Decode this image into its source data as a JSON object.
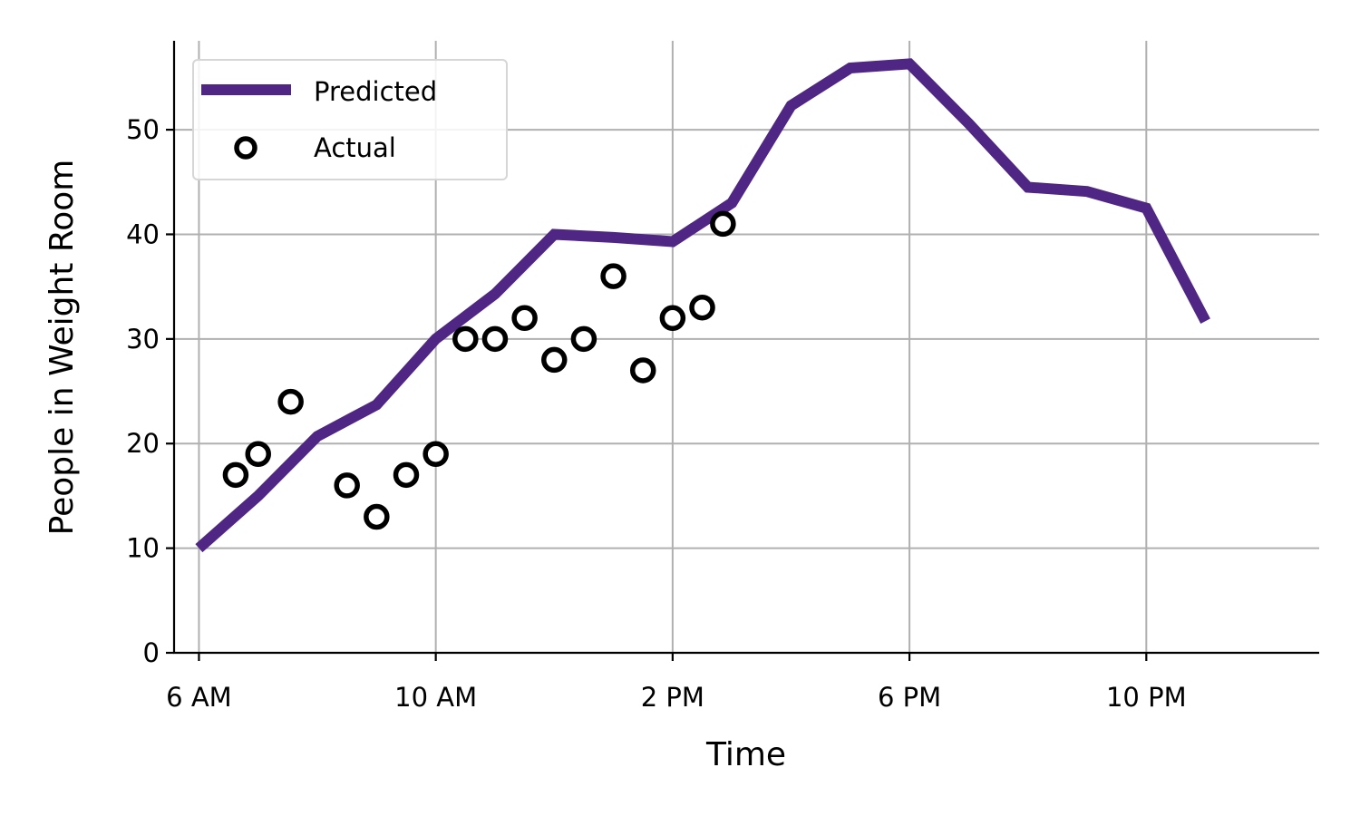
{
  "chart_data": {
    "type": "line",
    "xlabel": "Time",
    "ylabel": "People in Weight Room",
    "x_unit": "hour of day",
    "xlim": [
      5.58,
      24.92
    ],
    "ylim": [
      0,
      58.5
    ],
    "xticks": [
      {
        "value": 6,
        "label": "6 AM"
      },
      {
        "value": 10,
        "label": "10 AM"
      },
      {
        "value": 14,
        "label": "2 PM"
      },
      {
        "value": 18,
        "label": "6 PM"
      },
      {
        "value": 22,
        "label": "10 PM"
      }
    ],
    "yticks": [
      0,
      10,
      20,
      30,
      40,
      50
    ],
    "grid": true,
    "legend_position": "top-left",
    "series": [
      {
        "name": "Predicted",
        "kind": "line",
        "color": "#4f2683",
        "x": [
          6,
          7,
          8,
          9,
          10,
          11,
          12,
          13,
          14,
          15,
          16,
          17,
          18,
          19,
          20,
          21,
          22,
          23
        ],
        "y": [
          10,
          15,
          20.7,
          23.7,
          30,
          34.3,
          40,
          39.7,
          39.3,
          43,
          52.3,
          55.9,
          56.3,
          50.6,
          44.5,
          44.1,
          42.5,
          31.7
        ]
      },
      {
        "name": "Actual",
        "kind": "scatter",
        "color": "#000000",
        "x": [
          6.62,
          7.0,
          7.55,
          8.5,
          9.0,
          9.5,
          10.0,
          10.5,
          11.0,
          11.5,
          12.0,
          12.5,
          13.0,
          13.5,
          14.0,
          14.5,
          14.85
        ],
        "y": [
          17,
          19,
          24,
          16,
          13,
          17,
          19,
          30,
          30,
          32,
          28,
          30,
          36,
          27,
          32,
          33,
          41
        ]
      }
    ]
  }
}
